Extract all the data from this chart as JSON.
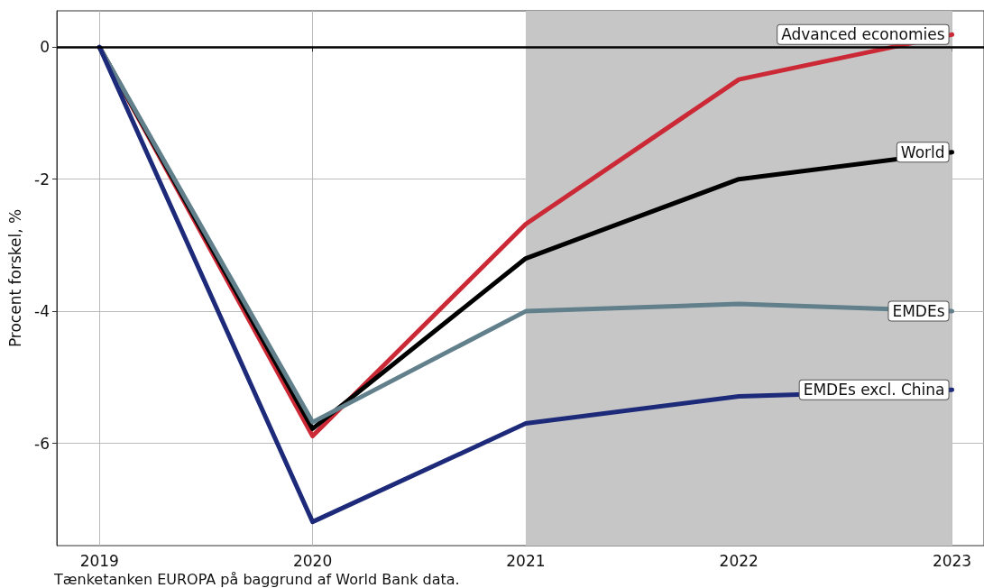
{
  "chart_data": {
    "type": "line",
    "ylabel": "Procent forskel, %",
    "annotations": [
      "Tænketanken EUROPA på baggrund af World Bank data."
    ],
    "x": [
      2019,
      2020,
      2021,
      2022,
      2023
    ],
    "series": [
      {
        "name": "Advanced economies",
        "color": "#cc2936",
        "values": [
          0,
          -5.89,
          -2.68,
          -0.49,
          0.19
        ]
      },
      {
        "name": "World",
        "color": "#000000",
        "values": [
          0,
          -5.78,
          -3.2,
          -2.0,
          -1.59
        ]
      },
      {
        "name": "EMDEs",
        "color": "#61808b",
        "values": [
          0,
          -5.68,
          -4.0,
          -3.89,
          -4.0
        ]
      },
      {
        "name": "EMDEs excl. China",
        "color": "#1d2a7a",
        "values": [
          0,
          -7.19,
          -5.7,
          -5.29,
          -5.19
        ]
      }
    ],
    "xlim": [
      2018.8,
      2023.15
    ],
    "xticks": [
      2019,
      2020,
      2021,
      2022,
      2023
    ],
    "ylim": [
      -7.55,
      0.55
    ],
    "yticks": [
      0,
      -2,
      -4,
      -6
    ],
    "grid": true,
    "marker": "none",
    "line_style": "solid",
    "ref_lines": [
      {
        "axis": "y",
        "value": 0,
        "color": "#000000"
      }
    ],
    "bands": [
      {
        "axis": "x",
        "from": 2021,
        "to": 2023,
        "color": "#c6c6c6"
      }
    ]
  }
}
